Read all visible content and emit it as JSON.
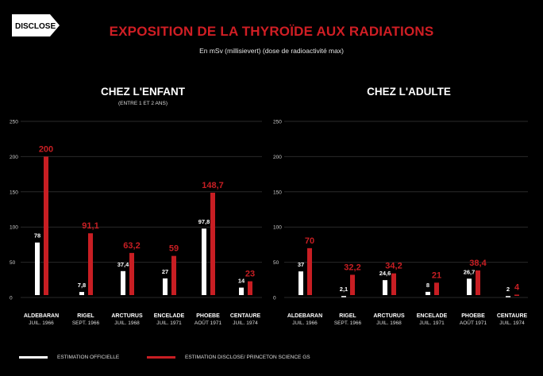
{
  "brand": {
    "logo_text": "DISCLOSE"
  },
  "title": "EXPOSITION DE LA THYROÏDE AUX RADIATIONS",
  "subtitle": "En mSv (millisievert) (dose de radioactivité max)",
  "colors": {
    "official": "#ffffff",
    "disclose": "#c81e23",
    "title": "#d01e24",
    "grid": "#2a2a2a"
  },
  "legend": {
    "official": "ESTIMATION OFFICIELLE",
    "disclose": "ESTIMATION DISCLOSE/ PRINCETON SCIENCE GS"
  },
  "chart_data": [
    {
      "type": "bar",
      "title": "CHEZ L'ENFANT",
      "subtitle": "(ENTRE 1 ET 2 ANS)",
      "categories": [
        "ALDEBARAN",
        "RIGEL",
        "ARCTURUS",
        "ENCELADE",
        "PHOEBE",
        "CENTAURE"
      ],
      "dates": [
        "JUIL. 1966",
        "SEPT. 1966",
        "JUIL. 1968",
        "JUIL. 1971",
        "AOÛT 1971",
        "JUIL. 1974"
      ],
      "series": [
        {
          "name": "ESTIMATION OFFICIELLE",
          "values": [
            78,
            7.8,
            37.4,
            27,
            97.8,
            14
          ],
          "labels": [
            "78",
            "7,8",
            "37,4",
            "27",
            "97,8",
            "14"
          ]
        },
        {
          "name": "ESTIMATION DISCLOSE/ PRINCETON SCIENCE GS",
          "values": [
            200,
            91.1,
            63.2,
            59,
            148.7,
            23
          ],
          "labels": [
            "200",
            "91,1",
            "63,2",
            "59",
            "148,7",
            "23"
          ]
        }
      ],
      "yticks": [
        "250",
        "200",
        "150",
        "100",
        "50",
        "0"
      ],
      "ylim": [
        0,
        250
      ],
      "grid": true
    },
    {
      "type": "bar",
      "title": "CHEZ L'ADULTE",
      "subtitle": "",
      "categories": [
        "ALDEBARAN",
        "RIGEL",
        "ARCTURUS",
        "ENCELADE",
        "PHOEBE",
        "CENTAURE"
      ],
      "dates": [
        "JUIL. 1966",
        "SEPT. 1966",
        "JUIL. 1968",
        "JUIL. 1971",
        "AOÛT 1971",
        "JUIL. 1974"
      ],
      "series": [
        {
          "name": "ESTIMATION OFFICIELLE",
          "values": [
            37,
            2.1,
            24.6,
            8,
            26.7,
            2
          ],
          "labels": [
            "37",
            "2,1",
            "24,6",
            "8",
            "26,7",
            "2"
          ]
        },
        {
          "name": "ESTIMATION DISCLOSE/ PRINCETON SCIENCE GS",
          "values": [
            70,
            32.2,
            34.2,
            21,
            38.4,
            4
          ],
          "labels": [
            "70",
            "32,2",
            "34,2",
            "21",
            "38,4",
            "4"
          ]
        }
      ],
      "yticks": [
        "250",
        "200",
        "150",
        "100",
        "50",
        "0"
      ],
      "ylim": [
        0,
        250
      ],
      "grid": true
    }
  ]
}
